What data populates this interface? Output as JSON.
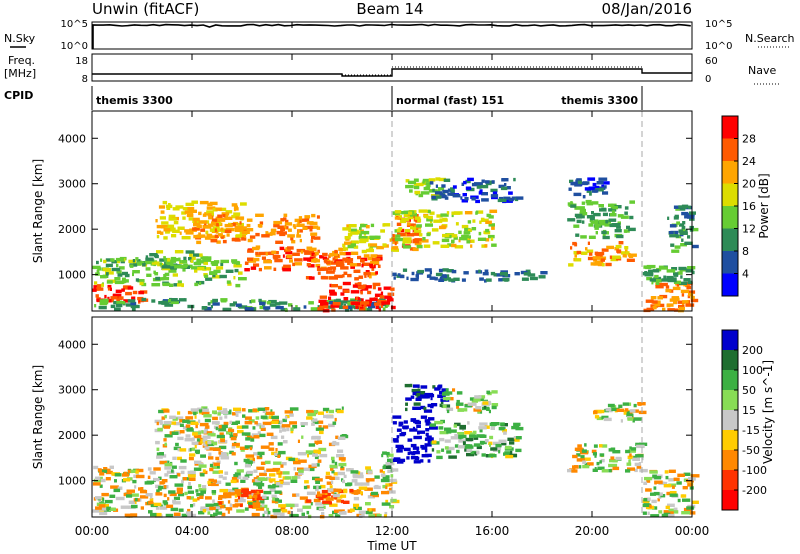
{
  "header": {
    "station": "Unwin (fitACF)",
    "beam": "Beam 14",
    "date": "08/Jan/2016"
  },
  "left_labels": {
    "nsky": "N.Sky",
    "freq": "Freq.",
    "freq_unit": "[MHz]",
    "cpid": "CPID"
  },
  "right_labels": {
    "nsearch": "N.Search",
    "nave": "Nave"
  },
  "noise_axis": {
    "left_ticks": [
      "10^5",
      "10^0"
    ],
    "right_ticks": [
      "10^5",
      "10^0"
    ]
  },
  "freq_axis": {
    "left_ticks": [
      "18",
      "8"
    ],
    "right_ticks": [
      "60",
      "0"
    ]
  },
  "cpid_blocks": [
    {
      "label": "themis 3300",
      "start_hour": 0,
      "end_hour": 12
    },
    {
      "label": "normal (fast) 151",
      "start_hour": 12,
      "end_hour": 22
    },
    {
      "label": "themis 3300",
      "start_hour": 22,
      "end_hour": 24
    }
  ],
  "colors": {
    "power_scale": [
      "#0000ff",
      "#1f4fa0",
      "#2e8b57",
      "#66cc33",
      "#dddd00",
      "#ffa500",
      "#ff5a00",
      "#ff0000"
    ],
    "velocity_scale": [
      "#0000cc",
      "#1f6e30",
      "#3cb043",
      "#88dd55",
      "#c8c8c8",
      "#ffcc00",
      "#ff8800",
      "#ff3300",
      "#ff0000"
    ]
  },
  "chart_data": [
    {
      "type": "heatmap",
      "title": "",
      "ylabel": "Slant Range [km]",
      "xlabel": "Time UT",
      "xlim": [
        0,
        24
      ],
      "ylim": [
        200,
        4600
      ],
      "x_ticks": [
        "00:00",
        "04:00",
        "08:00",
        "12:00",
        "16:00",
        "20:00",
        "00:00"
      ],
      "y_ticks": [
        1000,
        2000,
        3000,
        4000
      ],
      "colorbar": {
        "label": "Power [dB]",
        "range": [
          0,
          32
        ],
        "ticks": [
          4,
          8,
          12,
          16,
          20,
          24,
          28
        ]
      },
      "series": [
        {
          "hours": [
            0.0,
            2.0
          ],
          "range_km": [
            380,
            750
          ],
          "value": 28
        },
        {
          "hours": [
            0.0,
            12.0
          ],
          "range_km": [
            200,
            450
          ],
          "value": 10
        },
        {
          "hours": [
            0.0,
            6.0
          ],
          "range_km": [
            750,
            1350
          ],
          "value": 14
        },
        {
          "hours": [
            2.0,
            4.5
          ],
          "range_km": [
            1100,
            1500
          ],
          "value": 14
        },
        {
          "hours": [
            2.5,
            6.0
          ],
          "range_km": [
            1800,
            2600
          ],
          "value": 20
        },
        {
          "hours": [
            4.0,
            9.0
          ],
          "range_km": [
            1700,
            2300
          ],
          "value": 24
        },
        {
          "hours": [
            6.0,
            10.0
          ],
          "range_km": [
            1100,
            1600
          ],
          "value": 25
        },
        {
          "hours": [
            8.5,
            11.5
          ],
          "range_km": [
            900,
            1500
          ],
          "value": 26
        },
        {
          "hours": [
            9.0,
            12.0
          ],
          "range_km": [
            200,
            800
          ],
          "value": 28
        },
        {
          "hours": [
            10.0,
            12.0
          ],
          "range_km": [
            1500,
            2100
          ],
          "value": 18
        },
        {
          "hours": [
            12.0,
            13.0
          ],
          "range_km": [
            1500,
            2300
          ],
          "value": 26
        },
        {
          "hours": [
            12.0,
            16.0
          ],
          "range_km": [
            1600,
            2400
          ],
          "value": 17
        },
        {
          "hours": [
            12.5,
            14.0
          ],
          "range_km": [
            2700,
            3100
          ],
          "value": 16
        },
        {
          "hours": [
            12.0,
            18.0
          ],
          "range_km": [
            850,
            1100
          ],
          "value": 8
        },
        {
          "hours": [
            13.5,
            17.0
          ],
          "range_km": [
            2600,
            3100
          ],
          "value": 6
        },
        {
          "hours": [
            19.0,
            21.5
          ],
          "range_km": [
            1200,
            1700
          ],
          "value": 22
        },
        {
          "hours": [
            19.0,
            21.5
          ],
          "range_km": [
            1800,
            2600
          ],
          "value": 12
        },
        {
          "hours": [
            19.0,
            20.5
          ],
          "range_km": [
            2700,
            3100
          ],
          "value": 6
        },
        {
          "hours": [
            22.0,
            24.0
          ],
          "range_km": [
            200,
            800
          ],
          "value": 24
        },
        {
          "hours": [
            22.0,
            24.0
          ],
          "range_km": [
            800,
            1200
          ],
          "value": 12
        },
        {
          "hours": [
            23.0,
            24.0
          ],
          "range_km": [
            1500,
            2500
          ],
          "value": 10
        }
      ]
    },
    {
      "type": "heatmap",
      "title": "",
      "ylabel": "Slant Range [km]",
      "xlabel": "Time UT",
      "xlim": [
        0,
        24
      ],
      "ylim": [
        200,
        4600
      ],
      "x_ticks": [
        "00:00",
        "04:00",
        "08:00",
        "12:00",
        "16:00",
        "20:00",
        "00:00"
      ],
      "y_ticks": [
        1000,
        2000,
        3000,
        4000
      ],
      "colorbar": {
        "label": "Velocity [m s^-1]",
        "range": [
          -250,
          250
        ],
        "ticks": [
          200,
          100,
          50,
          15,
          -15,
          -50,
          -100,
          -200
        ]
      },
      "series": [
        {
          "hours": [
            0.0,
            12.0
          ],
          "range_km": [
            200,
            1300
          ],
          "value": 0
        },
        {
          "hours": [
            2.5,
            10.0
          ],
          "range_km": [
            1300,
            2600
          ],
          "value": 0
        },
        {
          "hours": [
            5.0,
            7.0
          ],
          "range_km": [
            400,
            800
          ],
          "value": -70
        },
        {
          "hours": [
            8.5,
            10.5
          ],
          "range_km": [
            500,
            800
          ],
          "value": -60
        },
        {
          "hours": [
            11.5,
            12.0
          ],
          "range_km": [
            1200,
            1600
          ],
          "value": 60
        },
        {
          "hours": [
            12.0,
            13.5
          ],
          "range_km": [
            1400,
            2400
          ],
          "value": 220
        },
        {
          "hours": [
            12.5,
            14.0
          ],
          "range_km": [
            2500,
            3100
          ],
          "value": 180
        },
        {
          "hours": [
            13.5,
            17.0
          ],
          "range_km": [
            1500,
            2300
          ],
          "value": 40
        },
        {
          "hours": [
            14.0,
            16.0
          ],
          "range_km": [
            2500,
            3000
          ],
          "value": 25
        },
        {
          "hours": [
            19.0,
            22.0
          ],
          "range_km": [
            1200,
            1800
          ],
          "value": 0
        },
        {
          "hours": [
            20.0,
            22.0
          ],
          "range_km": [
            2300,
            2700
          ],
          "value": 0
        },
        {
          "hours": [
            22.0,
            24.0
          ],
          "range_km": [
            200,
            1200
          ],
          "value": 0
        }
      ]
    }
  ]
}
